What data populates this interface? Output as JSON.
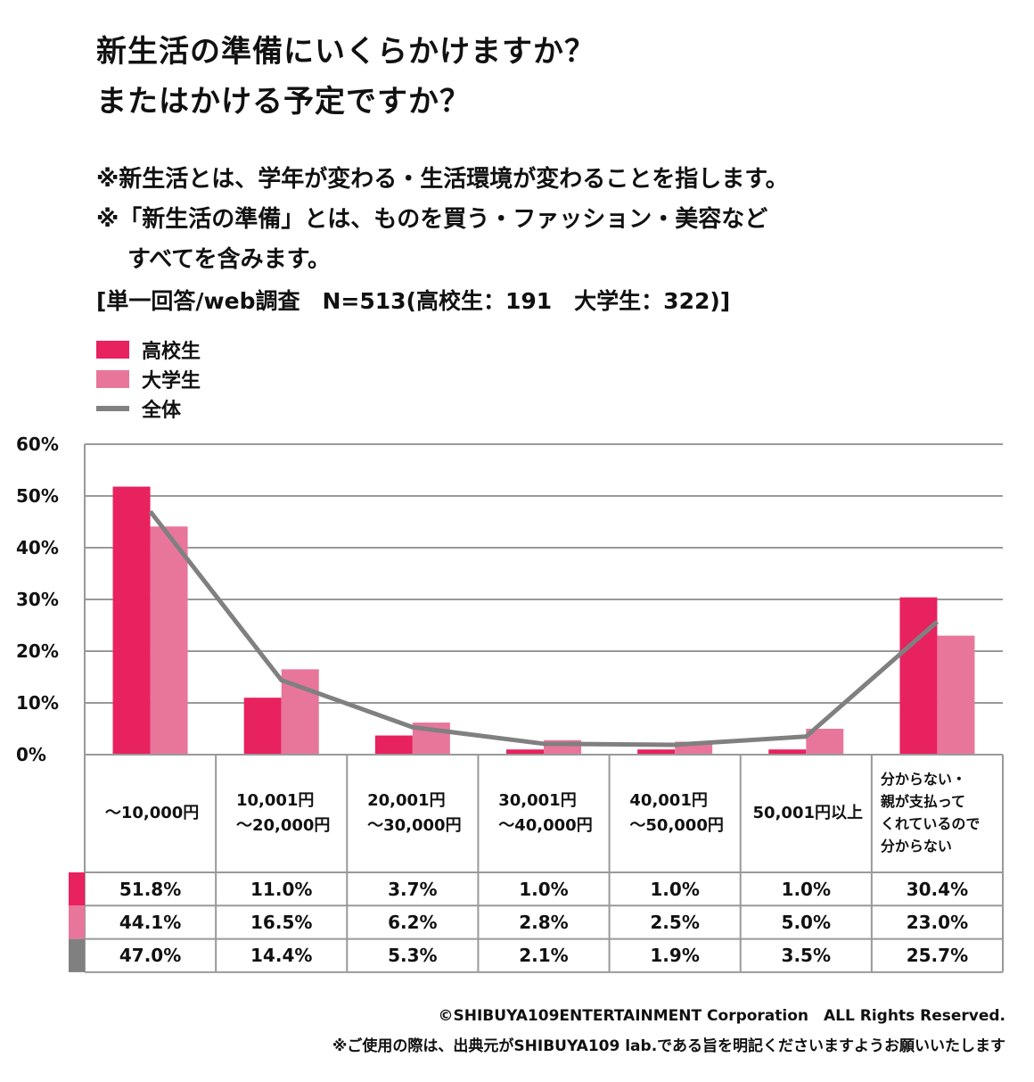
{
  "title": {
    "line1": "新生活の準備にいくらかけますか？",
    "line2": "またはかける予定ですか？"
  },
  "notes": {
    "line1": "※新生活とは、学年が変わる・生活環境が変わることを指します。",
    "line2": "※「新生活の準備」とは、ものを買う・ファッション・美容など",
    "line3": "すべてを含みます。",
    "survey": "[単一回答/web調査　N=513(高校生：191　大学生：322)]"
  },
  "colors": {
    "high_school": "#e8215f",
    "university": "#e8769b",
    "overall": "#808080",
    "grid": "#999999"
  },
  "chart_data": {
    "type": "bar",
    "title": "新生活の準備にいくらかけますか？またはかける予定ですか？",
    "xlabel": "",
    "ylabel": "",
    "ylim": [
      0,
      60
    ],
    "yticks": [
      "60%",
      "50%",
      "40%",
      "30%",
      "20%",
      "10%",
      "0%"
    ],
    "grid": true,
    "legend_position": "top-left",
    "categories": [
      "～10,000円",
      "10,001円\n～20,000円",
      "20,001円\n～30,000円",
      "30,001円\n～40,000円",
      "40,001円\n～50,000円",
      "50,001円以上",
      "分からない・\n親が支払って\nくれているので\n分からない"
    ],
    "series": [
      {
        "name": "高校生",
        "type": "bar",
        "values": [
          51.8,
          11.0,
          3.7,
          1.0,
          1.0,
          1.0,
          30.4
        ],
        "labels": [
          "51.8%",
          "11.0%",
          "3.7%",
          "1.0%",
          "1.0%",
          "1.0%",
          "30.4%"
        ]
      },
      {
        "name": "大学生",
        "type": "bar",
        "values": [
          44.1,
          16.5,
          6.2,
          2.8,
          2.5,
          5.0,
          23.0
        ],
        "labels": [
          "44.1%",
          "16.5%",
          "6.2%",
          "2.8%",
          "2.5%",
          "5.0%",
          "23.0%"
        ]
      },
      {
        "name": "全体",
        "type": "line",
        "values": [
          47.0,
          14.4,
          5.3,
          2.1,
          1.9,
          3.5,
          25.7
        ],
        "labels": [
          "47.0%",
          "14.4%",
          "5.3%",
          "2.1%",
          "1.9%",
          "3.5%",
          "25.7%"
        ]
      }
    ]
  },
  "footer": {
    "copyright": "©SHIBUYA109ENTERTAINMENT Corporation　ALL Rights Reserved.",
    "usage": "※ご使用の際は、出典元がSHIBUYA109 lab.である旨を明記くださいますようお願いいたします"
  }
}
